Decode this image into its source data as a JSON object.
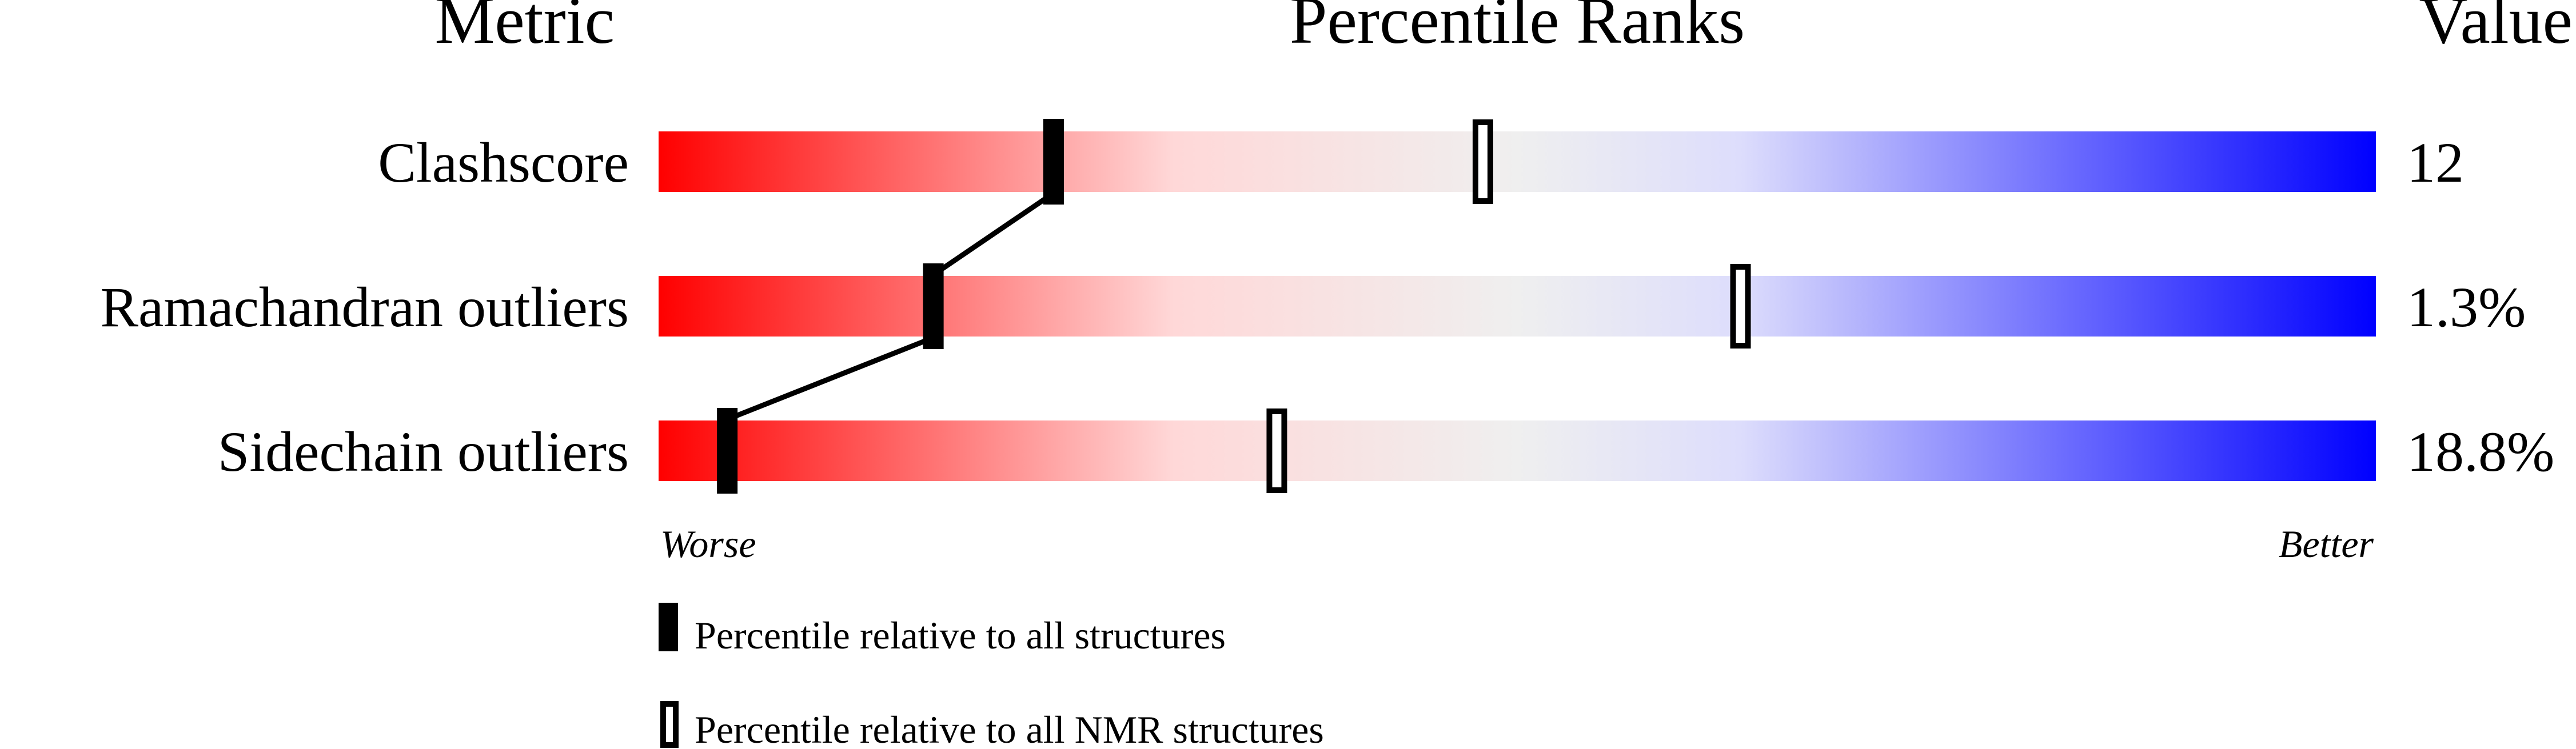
{
  "chart_data": {
    "type": "percentile-bar",
    "headers": {
      "metric": "Metric",
      "ranks": "Percentile Ranks",
      "value": "Value"
    },
    "axis": {
      "left_label": "Worse",
      "right_label": "Better",
      "range": [
        0,
        100
      ]
    },
    "gradient_colors": [
      "#ff0000",
      "#ffd8d8",
      "#efefef",
      "#ddddfc",
      "#0000ff"
    ],
    "metrics": [
      {
        "label": "Clashscore",
        "value": "12",
        "percentile_all": 23,
        "percentile_nmr": 48
      },
      {
        "label": "Ramachandran outliers",
        "value": "1.3%",
        "percentile_all": 16,
        "percentile_nmr": 63
      },
      {
        "label": "Sidechain outliers",
        "value": "18.8%",
        "percentile_all": 4,
        "percentile_nmr": 36
      }
    ],
    "legend": [
      {
        "marker": "filled",
        "label": "Percentile relative to all structures"
      },
      {
        "marker": "hollow",
        "label": "Percentile relative to all NMR structures"
      }
    ]
  }
}
